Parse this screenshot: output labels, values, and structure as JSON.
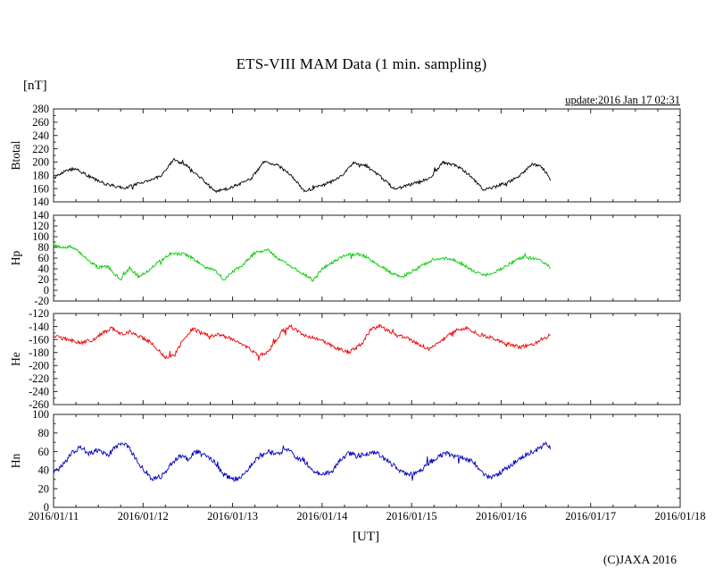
{
  "header": {
    "title": "ETS-VIII MAM Data (1 min. sampling)",
    "unit_label": "[nT]",
    "update_label": "update:2016 Jan 17 02:31"
  },
  "footer": {
    "xaxis_label": "[UT]",
    "copyright": "(C)JAXA 2016"
  },
  "chart_data": {
    "type": "line",
    "title": "ETS-VIII MAM Data (1 min. sampling)",
    "xlabel": "[UT]",
    "ylabel_unit": "[nT]",
    "legend_position": "none",
    "grid": false,
    "x_tick_labels": [
      "2016/01/11",
      "2016/01/12",
      "2016/01/13",
      "2016/01/14",
      "2016/01/15",
      "2016/01/16",
      "2016/01/17",
      "2016/01/18"
    ],
    "xlim_days": [
      0,
      7
    ],
    "x_minor_step_days": 0.25,
    "data_end_day": 5.55,
    "panels": [
      {
        "name": "Btotal",
        "color": "#000000",
        "ylim": [
          140,
          280
        ],
        "ytick_step": 20,
        "y_minor_step": 10,
        "noise_amp": 2.2,
        "anchors": [
          [
            0,
            176
          ],
          [
            0.15,
            188
          ],
          [
            0.25,
            190
          ],
          [
            0.4,
            178
          ],
          [
            0.55,
            168
          ],
          [
            0.7,
            163
          ],
          [
            0.8,
            161
          ],
          [
            0.9,
            166
          ],
          [
            1.0,
            170
          ],
          [
            1.1,
            173
          ],
          [
            1.2,
            180
          ],
          [
            1.35,
            204
          ],
          [
            1.5,
            193
          ],
          [
            1.65,
            176
          ],
          [
            1.8,
            156
          ],
          [
            1.9,
            158
          ],
          [
            2.0,
            163
          ],
          [
            2.1,
            168
          ],
          [
            2.2,
            174
          ],
          [
            2.35,
            200
          ],
          [
            2.5,
            196
          ],
          [
            2.65,
            180
          ],
          [
            2.8,
            156
          ],
          [
            2.9,
            160
          ],
          [
            3.0,
            165
          ],
          [
            3.1,
            170
          ],
          [
            3.2,
            177
          ],
          [
            3.35,
            198
          ],
          [
            3.5,
            194
          ],
          [
            3.65,
            178
          ],
          [
            3.8,
            160
          ],
          [
            3.9,
            162
          ],
          [
            4.0,
            167
          ],
          [
            4.1,
            170
          ],
          [
            4.2,
            176
          ],
          [
            4.35,
            199
          ],
          [
            4.5,
            195
          ],
          [
            4.65,
            180
          ],
          [
            4.8,
            158
          ],
          [
            4.9,
            161
          ],
          [
            5.0,
            166
          ],
          [
            5.1,
            171
          ],
          [
            5.2,
            178
          ],
          [
            5.35,
            198
          ],
          [
            5.45,
            192
          ],
          [
            5.5,
            185
          ],
          [
            5.55,
            172
          ]
        ]
      },
      {
        "name": "Hp",
        "color": "#00cc00",
        "ylim": [
          -20,
          140
        ],
        "ytick_step": 20,
        "y_minor_step": 10,
        "noise_amp": 2.8,
        "anchors": [
          [
            0,
            84
          ],
          [
            0.1,
            80
          ],
          [
            0.2,
            82
          ],
          [
            0.3,
            70
          ],
          [
            0.4,
            55
          ],
          [
            0.5,
            42
          ],
          [
            0.6,
            45
          ],
          [
            0.7,
            28
          ],
          [
            0.75,
            20
          ],
          [
            0.85,
            42
          ],
          [
            0.95,
            25
          ],
          [
            1.05,
            35
          ],
          [
            1.15,
            50
          ],
          [
            1.3,
            67
          ],
          [
            1.45,
            68
          ],
          [
            1.55,
            60
          ],
          [
            1.7,
            42
          ],
          [
            1.8,
            38
          ],
          [
            1.9,
            20
          ],
          [
            2.0,
            35
          ],
          [
            2.1,
            45
          ],
          [
            2.25,
            70
          ],
          [
            2.4,
            75
          ],
          [
            2.5,
            60
          ],
          [
            2.6,
            50
          ],
          [
            2.7,
            40
          ],
          [
            2.8,
            30
          ],
          [
            2.9,
            18
          ],
          [
            3.0,
            40
          ],
          [
            3.1,
            50
          ],
          [
            3.25,
            65
          ],
          [
            3.4,
            68
          ],
          [
            3.5,
            62
          ],
          [
            3.6,
            50
          ],
          [
            3.7,
            40
          ],
          [
            3.8,
            30
          ],
          [
            3.9,
            25
          ],
          [
            4.0,
            35
          ],
          [
            4.1,
            45
          ],
          [
            4.25,
            58
          ],
          [
            4.4,
            60
          ],
          [
            4.5,
            55
          ],
          [
            4.6,
            45
          ],
          [
            4.7,
            35
          ],
          [
            4.8,
            28
          ],
          [
            4.9,
            30
          ],
          [
            5.0,
            40
          ],
          [
            5.1,
            50
          ],
          [
            5.25,
            62
          ],
          [
            5.4,
            58
          ],
          [
            5.5,
            48
          ],
          [
            5.55,
            43
          ]
        ]
      },
      {
        "name": "He",
        "color": "#ee0000",
        "ylim": [
          -260,
          -120
        ],
        "ytick_step": 20,
        "y_minor_step": 10,
        "noise_amp": 2.8,
        "anchors": [
          [
            0,
            -155
          ],
          [
            0.15,
            -160
          ],
          [
            0.3,
            -165
          ],
          [
            0.45,
            -160
          ],
          [
            0.55,
            -150
          ],
          [
            0.65,
            -143
          ],
          [
            0.75,
            -152
          ],
          [
            0.85,
            -148
          ],
          [
            0.95,
            -155
          ],
          [
            1.1,
            -165
          ],
          [
            1.25,
            -188
          ],
          [
            1.35,
            -183
          ],
          [
            1.45,
            -160
          ],
          [
            1.55,
            -143
          ],
          [
            1.65,
            -150
          ],
          [
            1.75,
            -155
          ],
          [
            1.85,
            -152
          ],
          [
            2.0,
            -160
          ],
          [
            2.15,
            -170
          ],
          [
            2.3,
            -185
          ],
          [
            2.4,
            -178
          ],
          [
            2.55,
            -148
          ],
          [
            2.65,
            -140
          ],
          [
            2.75,
            -150
          ],
          [
            2.85,
            -155
          ],
          [
            3.0,
            -162
          ],
          [
            3.15,
            -172
          ],
          [
            3.3,
            -180
          ],
          [
            3.45,
            -165
          ],
          [
            3.55,
            -143
          ],
          [
            3.65,
            -140
          ],
          [
            3.8,
            -152
          ],
          [
            3.95,
            -158
          ],
          [
            4.1,
            -168
          ],
          [
            4.2,
            -175
          ],
          [
            4.35,
            -160
          ],
          [
            4.5,
            -145
          ],
          [
            4.6,
            -142
          ],
          [
            4.75,
            -152
          ],
          [
            4.9,
            -158
          ],
          [
            5.05,
            -165
          ],
          [
            5.2,
            -172
          ],
          [
            5.35,
            -168
          ],
          [
            5.45,
            -160
          ],
          [
            5.55,
            -153
          ]
        ]
      },
      {
        "name": "Hn",
        "color": "#0000bb",
        "ylim": [
          0,
          100
        ],
        "ytick_step": 20,
        "y_minor_step": 10,
        "noise_amp": 2.8,
        "anchors": [
          [
            0,
            37
          ],
          [
            0.1,
            45
          ],
          [
            0.2,
            58
          ],
          [
            0.3,
            65
          ],
          [
            0.4,
            58
          ],
          [
            0.5,
            62
          ],
          [
            0.6,
            55
          ],
          [
            0.7,
            65
          ],
          [
            0.8,
            70
          ],
          [
            0.9,
            55
          ],
          [
            1.0,
            42
          ],
          [
            1.1,
            30
          ],
          [
            1.2,
            33
          ],
          [
            1.3,
            45
          ],
          [
            1.4,
            55
          ],
          [
            1.5,
            52
          ],
          [
            1.6,
            60
          ],
          [
            1.7,
            55
          ],
          [
            1.8,
            48
          ],
          [
            1.9,
            35
          ],
          [
            2.0,
            30
          ],
          [
            2.1,
            32
          ],
          [
            2.2,
            45
          ],
          [
            2.3,
            55
          ],
          [
            2.4,
            60
          ],
          [
            2.5,
            58
          ],
          [
            2.6,
            62
          ],
          [
            2.7,
            55
          ],
          [
            2.8,
            50
          ],
          [
            2.9,
            40
          ],
          [
            3.0,
            35
          ],
          [
            3.1,
            38
          ],
          [
            3.2,
            50
          ],
          [
            3.3,
            58
          ],
          [
            3.4,
            55
          ],
          [
            3.5,
            58
          ],
          [
            3.6,
            60
          ],
          [
            3.7,
            52
          ],
          [
            3.8,
            45
          ],
          [
            3.9,
            38
          ],
          [
            4.0,
            35
          ],
          [
            4.1,
            40
          ],
          [
            4.2,
            48
          ],
          [
            4.3,
            55
          ],
          [
            4.4,
            58
          ],
          [
            4.5,
            55
          ],
          [
            4.6,
            52
          ],
          [
            4.7,
            48
          ],
          [
            4.8,
            35
          ],
          [
            4.9,
            32
          ],
          [
            5.0,
            38
          ],
          [
            5.1,
            45
          ],
          [
            5.2,
            52
          ],
          [
            5.3,
            58
          ],
          [
            5.4,
            62
          ],
          [
            5.5,
            68
          ],
          [
            5.55,
            65
          ]
        ]
      }
    ]
  }
}
